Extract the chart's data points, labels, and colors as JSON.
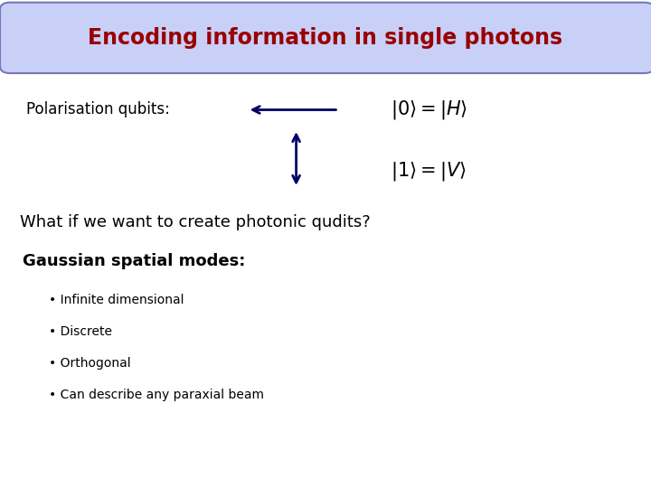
{
  "title": "Encoding information in single photons",
  "title_color": "#990000",
  "title_bg_color": "#c8d0f8",
  "title_border_color": "#7777bb",
  "polarisation_label": "Polarisation qubits:",
  "arrow_color": "#000066",
  "eq1": "$|0\\rangle = |H\\rangle$",
  "eq2": "$|1\\rangle = |V\\rangle$",
  "question": "What if we want to create photonic qudits?",
  "gaussian_title": "Gaussian spatial modes:",
  "bullets": [
    "Infinite dimensional",
    "Discrete",
    "Orthogonal",
    "Can describe any paraxial beam"
  ],
  "bg_color": "#ffffff",
  "title_fontsize": 17,
  "label_fontsize": 12,
  "eq_fontsize": 15,
  "question_fontsize": 13,
  "gaussian_fontsize": 13,
  "bullet_fontsize": 10
}
